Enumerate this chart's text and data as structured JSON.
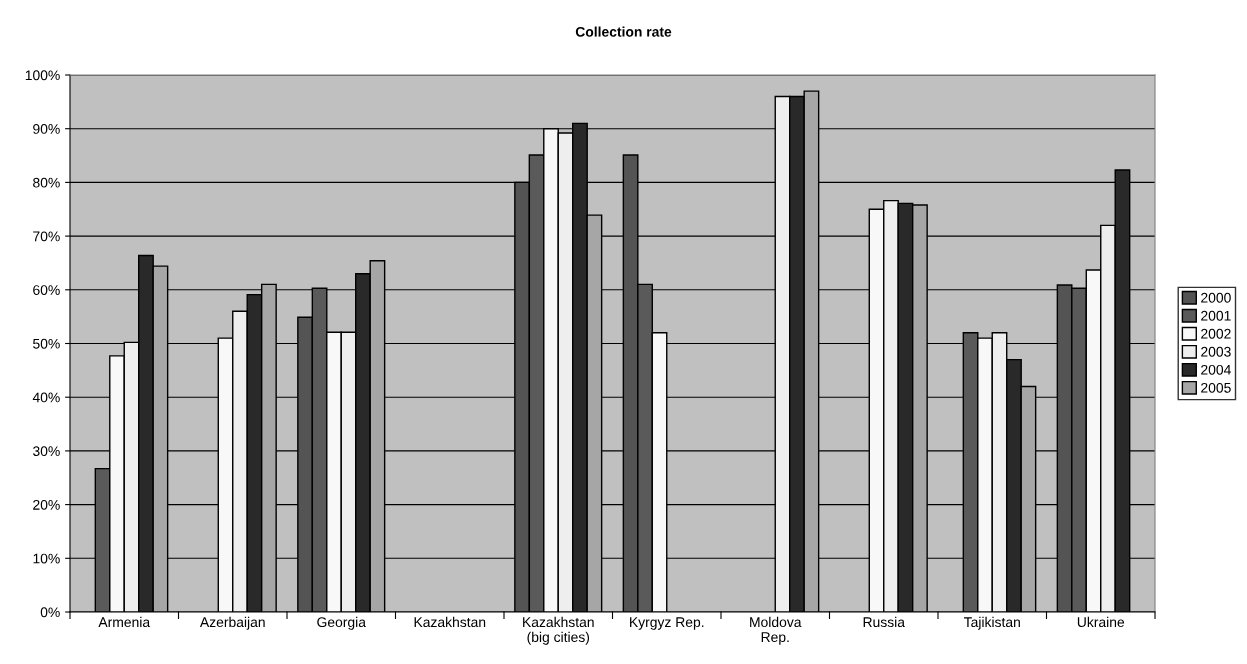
{
  "chart_data": {
    "type": "bar",
    "title": "Collection rate",
    "categories": [
      "Armenia",
      "Azerbaijan",
      "Georgia",
      "Kazakhstan",
      "Kazakhstan\n(big cities)",
      "Kyrgyz Rep.",
      "Moldova\nRep.",
      "Russia",
      "Tajikistan",
      "Ukraine"
    ],
    "series": [
      {
        "name": "2000",
        "color": "#545454",
        "values": [
          null,
          null,
          54.9,
          null,
          80.0,
          85.1,
          null,
          null,
          null,
          60.9
        ]
      },
      {
        "name": "2001",
        "color": "#5a5a5a",
        "values": [
          26.7,
          null,
          60.3,
          null,
          85.1,
          61.0,
          null,
          null,
          52.0,
          60.3
        ]
      },
      {
        "name": "2002",
        "color": "#f8f8f8",
        "values": [
          47.7,
          51.0,
          52.1,
          null,
          90.0,
          52.0,
          null,
          75.0,
          51.0,
          63.7
        ]
      },
      {
        "name": "2003",
        "color": "#eeeeee",
        "values": [
          50.2,
          56.0,
          52.1,
          null,
          89.2,
          null,
          96.0,
          76.6,
          52.0,
          72.0
        ]
      },
      {
        "name": "2004",
        "color": "#292929",
        "values": [
          66.4,
          59.1,
          63.0,
          null,
          91.0,
          null,
          96.0,
          76.1,
          47.0,
          82.3
        ]
      },
      {
        "name": "2005",
        "color": "#a6a6a6",
        "values": [
          64.4,
          61.0,
          65.4,
          null,
          73.9,
          null,
          97.0,
          75.8,
          42.0,
          null
        ]
      }
    ],
    "ylim": [
      0,
      100
    ],
    "yticks": [
      {
        "value": 0,
        "label": "0%"
      },
      {
        "value": 10,
        "label": "10%"
      },
      {
        "value": 20,
        "label": "20%"
      },
      {
        "value": 30,
        "label": "30%"
      },
      {
        "value": 40,
        "label": "40%"
      },
      {
        "value": 50,
        "label": "50%"
      },
      {
        "value": 60,
        "label": "60%"
      },
      {
        "value": 70,
        "label": "70%"
      },
      {
        "value": 80,
        "label": "80%"
      },
      {
        "value": 90,
        "label": "90%"
      },
      {
        "value": 100,
        "label": "100%"
      }
    ],
    "grid": "y",
    "legend": "right"
  }
}
